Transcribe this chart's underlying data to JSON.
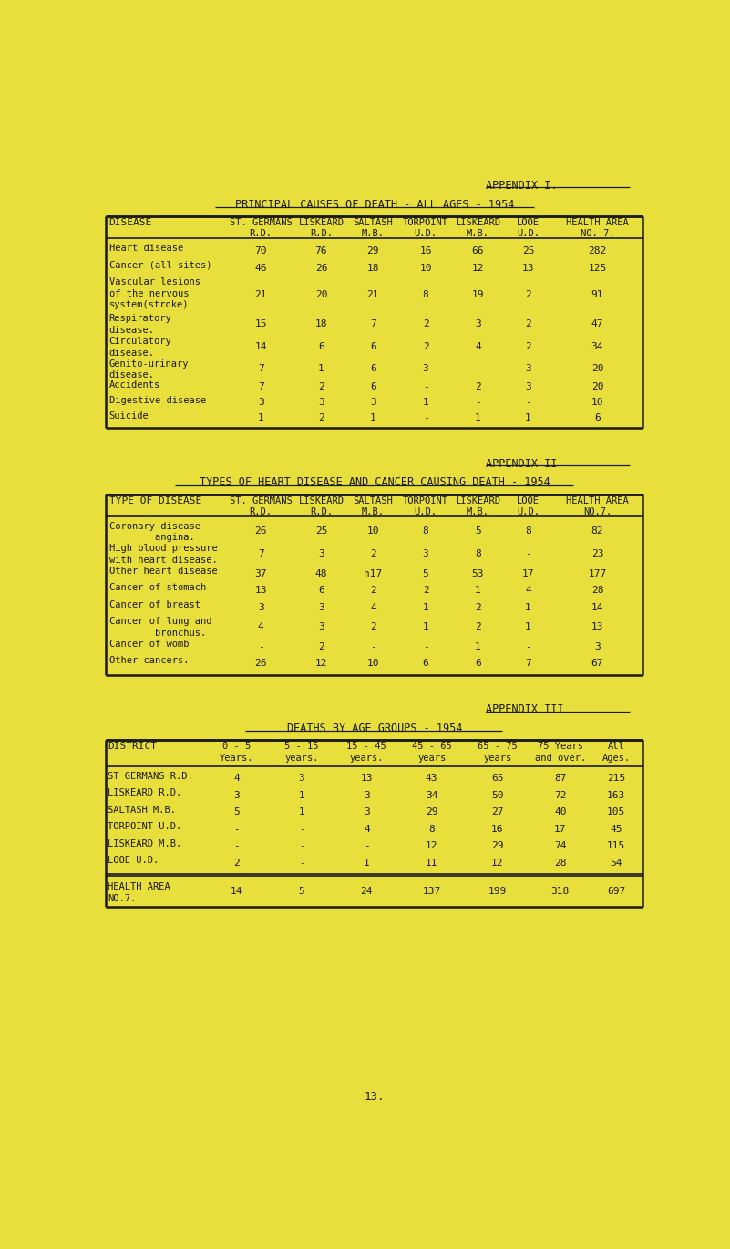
{
  "bg_color": "#e8de3c",
  "text_color": "#1a1a1a",
  "page_number": "13.",
  "appendix1": {
    "label": "APPENDIX I.",
    "title": "PRINCIPAL CAUSES OF DEATH - ALL AGES - 1954",
    "rows": [
      [
        "Heart disease",
        "70",
        "76",
        "29",
        "16",
        "66",
        "25",
        "282"
      ],
      [
        "Cancer (all sites)",
        "46",
        "26",
        "18",
        "10",
        "12",
        "13",
        "125"
      ],
      [
        "Vascular lesions\nof the nervous\nsystem(stroke)",
        "21",
        "20",
        "21",
        "8",
        "19",
        "2",
        "91"
      ],
      [
        "Respiratory\ndisease.",
        "15",
        "18",
        "7",
        "2",
        "3",
        "2",
        "47"
      ],
      [
        "Circulatory\ndisease.",
        "14",
        "6",
        "6",
        "2",
        "4",
        "2",
        "34"
      ],
      [
        "Genito-urinary\ndisease.",
        "7",
        "1",
        "6",
        "3",
        "-",
        "3",
        "20"
      ],
      [
        "Accidents",
        "7",
        "2",
        "6",
        "-",
        "2",
        "3",
        "20"
      ],
      [
        "Digestive disease",
        "3",
        "3",
        "3",
        "1",
        "-",
        "-",
        "10"
      ],
      [
        "Suicide",
        "1",
        "2",
        "1",
        "-",
        "1",
        "1",
        "6"
      ]
    ]
  },
  "appendix2": {
    "label": "APPENDIX II",
    "title": "TYPES OF HEART DISEASE AND CANCER CAUSING DEATH - 1954",
    "rows": [
      [
        "Coronary disease\n        angina.",
        "26",
        "25",
        "10",
        "8",
        "5",
        "8",
        "82"
      ],
      [
        "High blood pressure\nwith heart disease.",
        "7",
        "3",
        "2",
        "3",
        "8",
        "-",
        "23"
      ],
      [
        "Other heart disease",
        "37",
        "48",
        "n17",
        "5",
        "53",
        "17",
        "177"
      ],
      [
        "Cancer of stomach",
        "13",
        "6",
        "2",
        "2",
        "1",
        "4",
        "28"
      ],
      [
        "Cancer of breast",
        "3",
        "3",
        "4",
        "1",
        "2",
        "1",
        "14"
      ],
      [
        "Cancer of lung and\n        bronchus.",
        "4",
        "3",
        "2",
        "1",
        "2",
        "1",
        "13"
      ],
      [
        "Cancer of womb",
        "-",
        "2",
        "-",
        "-",
        "1",
        "-",
        "3"
      ],
      [
        "Other cancers.",
        "26",
        "12",
        "10",
        "6",
        "6",
        "7",
        "67"
      ]
    ]
  },
  "appendix3": {
    "label": "APPENDIX III",
    "title": "DEATHS BY AGE GROUPS - 1954",
    "rows": [
      [
        "ST GERMANS R.D.",
        "4",
        "3",
        "13",
        "43",
        "65",
        "87",
        "215"
      ],
      [
        "LISKEARD R.D.",
        "3",
        "1",
        "3",
        "34",
        "50",
        "72",
        "163"
      ],
      [
        "SALTASH M.B.",
        "5",
        "1",
        "3",
        "29",
        "27",
        "40",
        "105"
      ],
      [
        "TORPOINT U.D.",
        "-",
        "-",
        "4",
        "8",
        "16",
        "17",
        "45"
      ],
      [
        "LISKEARD M.B.",
        "-",
        "-",
        "-",
        "12",
        "29",
        "74",
        "115"
      ],
      [
        "LOOE U.D.",
        "2",
        "-",
        "1",
        "11",
        "12",
        "28",
        "54"
      ]
    ],
    "total_label": "HEALTH AREA\nNO.7.",
    "total_row": [
      "14",
      "5",
      "24",
      "137",
      "199",
      "318",
      "697"
    ]
  }
}
